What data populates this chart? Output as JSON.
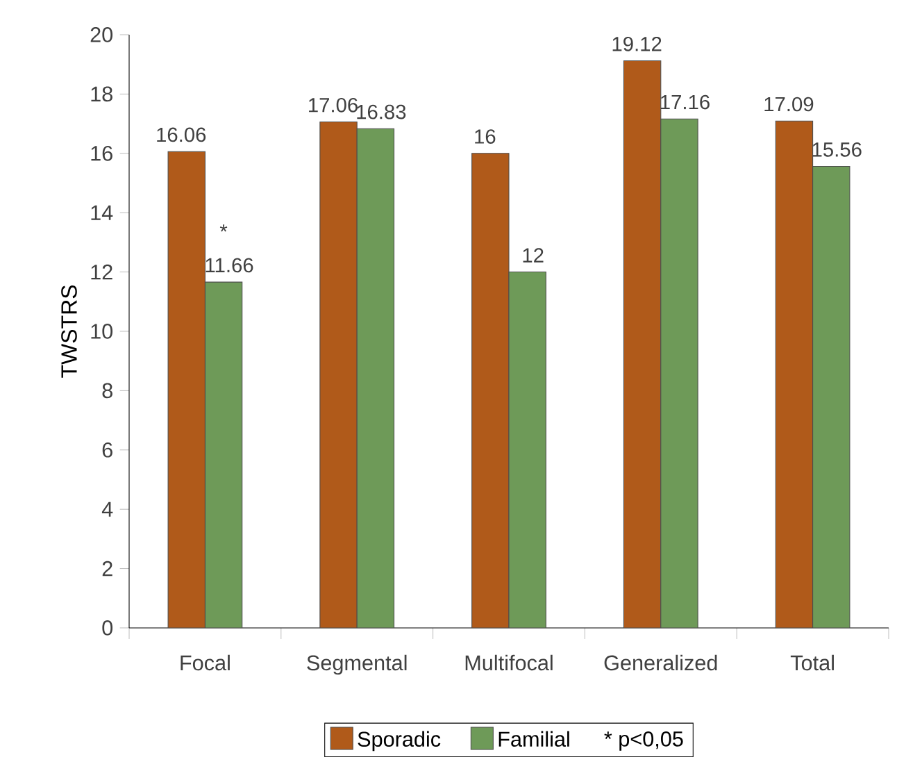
{
  "chart_data": {
    "type": "bar",
    "ylabel": "TWSTRS",
    "categories": [
      "Focal",
      "Segmental",
      "Multifocal",
      "Generalized",
      "Total"
    ],
    "series": [
      {
        "name": "Sporadic",
        "color": "#b05a1a",
        "values": [
          16.06,
          17.06,
          16,
          19.12,
          17.09
        ]
      },
      {
        "name": "Familial",
        "color": "#6e9a58",
        "values": [
          11.66,
          16.83,
          12,
          17.16,
          15.56
        ]
      }
    ],
    "ylim": [
      0,
      20
    ],
    "yticks": [
      0,
      2,
      4,
      6,
      8,
      10,
      12,
      14,
      16,
      18,
      20
    ],
    "data_labels": true,
    "grid": false,
    "legend": "bottom",
    "annotations": [
      {
        "text": "*",
        "x": "Focal",
        "y": 11.66
      },
      "* p<0,05"
    ]
  }
}
